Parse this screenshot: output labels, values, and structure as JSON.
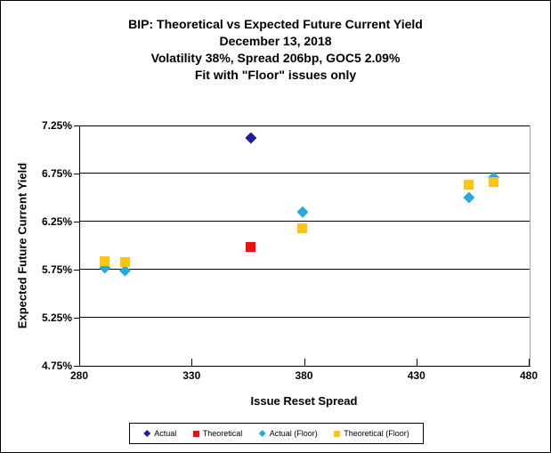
{
  "chart_data": {
    "type": "scatter",
    "title": "BIP: Theoretical vs Expected Future Current Yield",
    "subtitle_lines": [
      "December 13, 2018",
      "Volatility 38%, Spread 206bp, GOC5 2.09%",
      "Fit with \"Floor\" issues only"
    ],
    "xlabel": "Issue Reset Spread",
    "ylabel": "Expected Future Current Yield",
    "xlim": [
      280,
      480
    ],
    "ylim": [
      4.75,
      7.25
    ],
    "x_ticks": [
      {
        "value": 280,
        "label": "280"
      },
      {
        "value": 330,
        "label": "330"
      },
      {
        "value": 380,
        "label": "380"
      },
      {
        "value": 430,
        "label": "430"
      },
      {
        "value": 480,
        "label": "480"
      }
    ],
    "y_ticks": [
      {
        "value": 7.25,
        "label": "7.25%"
      },
      {
        "value": 6.75,
        "label": "6.75%"
      },
      {
        "value": 6.25,
        "label": "6.25%"
      },
      {
        "value": 5.75,
        "label": "5.75%"
      },
      {
        "value": 5.25,
        "label": "5.25%"
      },
      {
        "value": 4.75,
        "label": "4.75%"
      }
    ],
    "grid": "horizontal-only",
    "legend_position": "bottom",
    "series": [
      {
        "name": "Actual",
        "marker": "diamond",
        "color": "#1d1d96",
        "points": [
          {
            "x": 356,
            "y": 7.12
          }
        ]
      },
      {
        "name": "Theoretical",
        "marker": "square",
        "color": "#f20d0d",
        "points": [
          {
            "x": 356,
            "y": 5.99
          }
        ]
      },
      {
        "name": "Actual (Floor)",
        "marker": "diamond",
        "color": "#29a8e0",
        "points": [
          {
            "x": 291,
            "y": 5.77
          },
          {
            "x": 300,
            "y": 5.74
          },
          {
            "x": 379,
            "y": 6.35
          },
          {
            "x": 453,
            "y": 6.5
          },
          {
            "x": 464,
            "y": 6.71
          }
        ]
      },
      {
        "name": "Theoretical (Floor)",
        "marker": "square",
        "color": "#ffc413",
        "points": [
          {
            "x": 291,
            "y": 5.84
          },
          {
            "x": 300,
            "y": 5.83
          },
          {
            "x": 379,
            "y": 6.18
          },
          {
            "x": 453,
            "y": 6.63
          },
          {
            "x": 464,
            "y": 6.66
          }
        ]
      }
    ],
    "colors": {
      "grid": "#000000",
      "axis": "#000000",
      "plot_right_border": "#a6a6a6",
      "background": "#ffffff",
      "frame_border": "#000000"
    }
  }
}
